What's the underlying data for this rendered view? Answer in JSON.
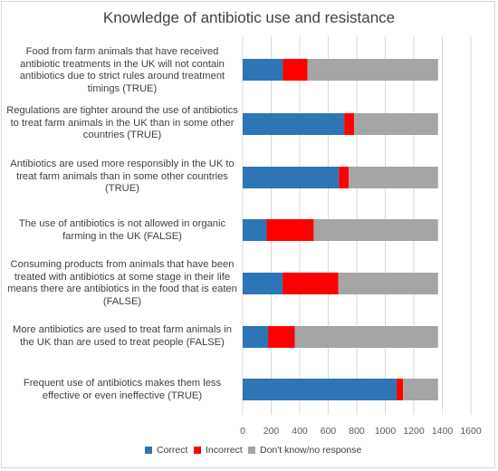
{
  "chart_data": {
    "type": "bar",
    "orientation": "horizontal",
    "stacked": true,
    "title": "Knowledge of antibiotic use and resistance",
    "categories": [
      "Food from farm animals that have received antibiotic treatments in the UK will not contain antibiotics due to strict rules around treatment timings (TRUE)",
      "Regulations are tighter around the use of antibiotics to treat farm animals in the UK than in some other countries (TRUE)",
      "Antibiotics are used more responsibly in the UK to treat farm animals than in some other countries (TRUE)",
      "The use of antibiotics is not allowed in organic farming in the UK (FALSE)",
      "Consuming products from animals that have been treated with antibiotics at some stage in their life means there are antibiotics in the food that is eaten (FALSE)",
      "More antibiotics are used to treat farm animals in the UK than are used to treat people (FALSE)",
      "Frequent use of antibiotics makes them less effective or even ineffective (TRUE)"
    ],
    "series": [
      {
        "name": "Correct",
        "color": "#2e75b6",
        "values": [
          282,
          712,
          675,
          168,
          280,
          178,
          1080
        ]
      },
      {
        "name": "Incorrect",
        "color": "#ff0000",
        "values": [
          173,
          70,
          68,
          330,
          390,
          187,
          45
        ]
      },
      {
        "name": "Don't know/no response",
        "color": "#a5a5a5",
        "values": [
          915,
          588,
          627,
          872,
          700,
          1005,
          245
        ]
      }
    ],
    "xlim": [
      0,
      1600
    ],
    "xticks": [
      "0",
      "200",
      "400",
      "600",
      "800",
      "1000",
      "1200",
      "1400",
      "1600"
    ],
    "grid": true,
    "legend_position": "bottom"
  }
}
